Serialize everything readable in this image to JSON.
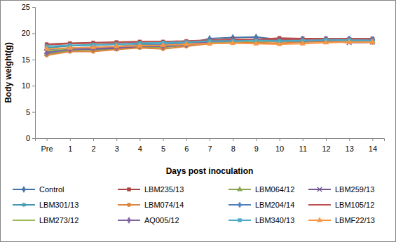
{
  "chart_data": {
    "type": "line",
    "x_label": "Days post inoculation",
    "y_label": "Body weight(g)",
    "categories": [
      "Pre",
      "1",
      "2",
      "3",
      "4",
      "5",
      "6",
      "7",
      "8",
      "9",
      "10",
      "11",
      "12",
      "13",
      "14"
    ],
    "ylim": [
      0,
      25
    ],
    "yticks": [
      0,
      5,
      10,
      15,
      20,
      25
    ],
    "grid": false,
    "legend": "bottom",
    "series": [
      {
        "name": "Control",
        "color": "#4572A7",
        "marker": "diamond",
        "values": [
          16.2,
          16.8,
          17.0,
          17.2,
          17.6,
          17.8,
          18.0,
          19.0,
          19.2,
          19.3,
          18.8,
          18.9,
          18.9,
          18.8,
          18.7
        ]
      },
      {
        "name": "LBM235/13",
        "color": "#AA4643",
        "marker": "square",
        "values": [
          17.9,
          18.1,
          18.2,
          18.3,
          18.4,
          18.4,
          18.5,
          18.6,
          18.9,
          18.8,
          19.1,
          19.0,
          19.0,
          18.9,
          19.0
        ]
      },
      {
        "name": "LBM064/12",
        "color": "#89A54E",
        "marker": "triangle",
        "values": [
          16.0,
          16.7,
          16.8,
          17.0,
          17.4,
          17.3,
          17.7,
          18.2,
          18.4,
          18.5,
          18.4,
          18.5,
          18.6,
          18.6,
          18.5
        ]
      },
      {
        "name": "LBM259/13",
        "color": "#71588F",
        "marker": "x",
        "values": [
          16.5,
          16.9,
          17.0,
          17.1,
          17.5,
          17.5,
          17.8,
          18.3,
          18.4,
          18.5,
          18.4,
          18.5,
          18.5,
          18.2,
          18.3
        ]
      },
      {
        "name": "LBM301/13",
        "color": "#4198AF",
        "marker": "asterisk",
        "values": [
          17.2,
          17.6,
          17.7,
          17.9,
          18.0,
          18.1,
          18.2,
          18.6,
          18.7,
          18.8,
          18.6,
          18.7,
          18.7,
          18.6,
          18.6
        ]
      },
      {
        "name": "LBM074/14",
        "color": "#DB843D",
        "marker": "circle",
        "values": [
          15.8,
          16.5,
          16.5,
          16.9,
          17.2,
          17.0,
          17.5,
          18.0,
          18.2,
          18.2,
          18.1,
          18.3,
          18.4,
          18.3,
          18.2
        ]
      },
      {
        "name": "LBM204/14",
        "color": "#4F81BD",
        "marker": "plus",
        "values": [
          16.8,
          17.2,
          17.3,
          17.5,
          17.8,
          17.8,
          18.0,
          18.5,
          18.7,
          18.9,
          18.7,
          18.8,
          18.9,
          19.0,
          18.9
        ]
      },
      {
        "name": "LBM105/12",
        "color": "#C0504D",
        "marker": "none",
        "values": [
          17.8,
          18.0,
          18.1,
          18.2,
          18.3,
          18.4,
          18.5,
          18.7,
          18.8,
          18.9,
          18.9,
          18.9,
          18.9,
          19.0,
          18.9
        ]
      },
      {
        "name": "LBM273/12",
        "color": "#9BBB59",
        "marker": "none",
        "values": [
          16.6,
          17.0,
          17.2,
          17.4,
          17.7,
          17.6,
          17.9,
          18.3,
          18.4,
          18.5,
          18.4,
          18.5,
          18.6,
          18.7,
          18.6
        ]
      },
      {
        "name": "AQ005/12",
        "color": "#8064A2",
        "marker": "diamond",
        "values": [
          16.3,
          16.9,
          17.1,
          17.3,
          17.6,
          17.5,
          17.8,
          18.4,
          18.5,
          18.6,
          18.5,
          18.5,
          18.6,
          18.7,
          18.6
        ]
      },
      {
        "name": "LBM340/13",
        "color": "#4BACC6",
        "marker": "square",
        "values": [
          17.5,
          17.7,
          17.8,
          17.9,
          18.1,
          18.2,
          18.3,
          18.5,
          18.5,
          18.6,
          18.5,
          18.6,
          18.7,
          18.7,
          18.6
        ]
      },
      {
        "name": "LBMF22/13",
        "color": "#F79646",
        "marker": "triangle",
        "values": [
          17.0,
          17.2,
          17.3,
          17.5,
          17.6,
          17.7,
          17.9,
          18.0,
          18.1,
          18.0,
          17.9,
          18.0,
          18.2,
          18.3,
          18.3
        ]
      }
    ]
  }
}
